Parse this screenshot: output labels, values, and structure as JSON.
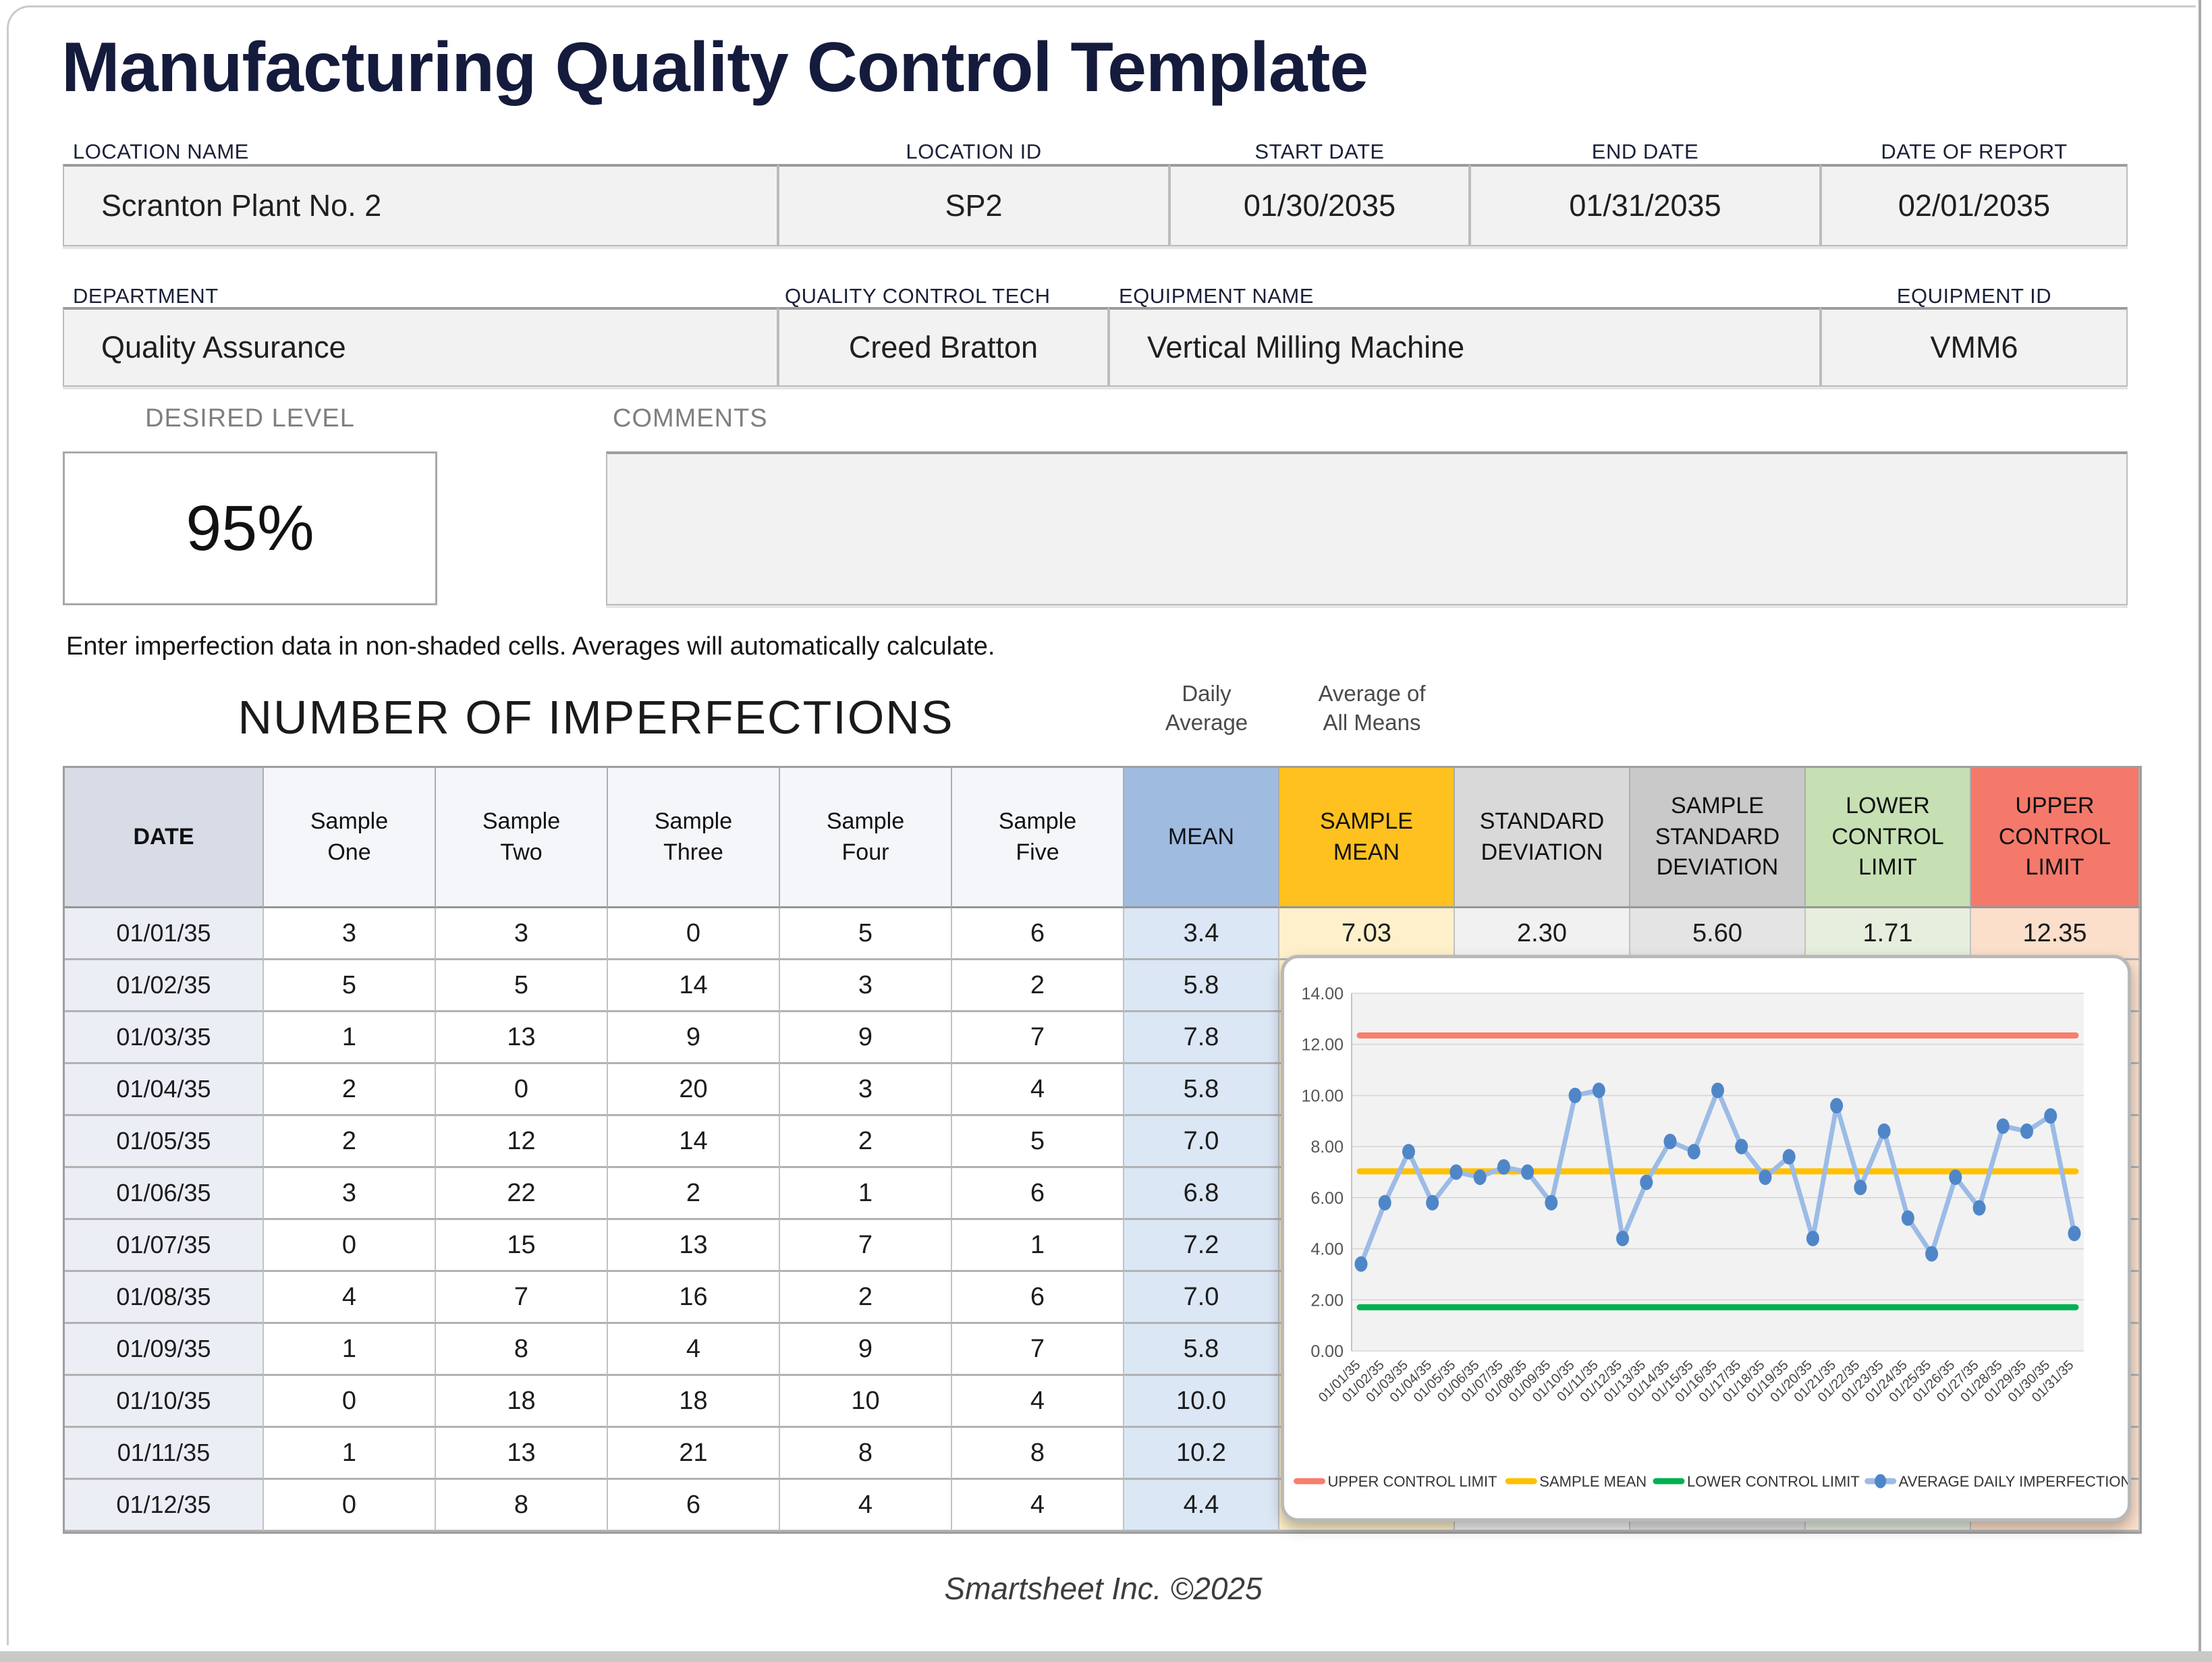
{
  "page": {
    "title": "Manufacturing Quality Control Template",
    "instruction": "Enter imperfection data in non-shaded cells. Averages will automatically calculate.",
    "footer": "Smartsheet Inc. ©2025"
  },
  "fields": {
    "row1": [
      {
        "label": "LOCATION NAME",
        "value": "Scranton Plant No. 2"
      },
      {
        "label": "LOCATION ID",
        "value": "SP2"
      },
      {
        "label": "START DATE",
        "value": "01/30/2035"
      },
      {
        "label": "END DATE",
        "value": "01/31/2035"
      },
      {
        "label": "DATE OF REPORT",
        "value": "02/01/2035"
      }
    ],
    "row2": [
      {
        "label": "DEPARTMENT",
        "value": "Quality Assurance"
      },
      {
        "label": "QUALITY CONTROL TECH",
        "value": "Creed Bratton"
      },
      {
        "label": "EQUIPMENT NAME",
        "value": "Vertical Milling Machine"
      },
      {
        "label": "EQUIPMENT ID",
        "value": "VMM6"
      }
    ]
  },
  "desired_level": {
    "label": "DESIRED LEVEL",
    "value": "95%"
  },
  "comments": {
    "label": "COMMENTS",
    "value": ""
  },
  "table": {
    "title": "NUMBER OF IMPERFECTIONS",
    "note_mean": "Daily\nAverage",
    "note_avg": "Average of\nAll Means",
    "columns": [
      "DATE",
      "Sample\nOne",
      "Sample\nTwo",
      "Sample\nThree",
      "Sample\nFour",
      "Sample\nFive",
      "MEAN",
      "SAMPLE\nMEAN",
      "STANDARD\nDEVIATION",
      "SAMPLE\nSTANDARD\nDEVIATION",
      "LOWER\nCONTROL\nLIMIT",
      "UPPER\nCONTROL\nLIMIT"
    ],
    "rows": [
      {
        "date": "01/01/35",
        "samples": [
          3,
          3,
          0,
          5,
          6
        ],
        "mean": "3.4"
      },
      {
        "date": "01/02/35",
        "samples": [
          5,
          5,
          14,
          3,
          2
        ],
        "mean": "5.8"
      },
      {
        "date": "01/03/35",
        "samples": [
          1,
          13,
          9,
          9,
          7
        ],
        "mean": "7.8"
      },
      {
        "date": "01/04/35",
        "samples": [
          2,
          0,
          20,
          3,
          4
        ],
        "mean": "5.8"
      },
      {
        "date": "01/05/35",
        "samples": [
          2,
          12,
          14,
          2,
          5
        ],
        "mean": "7.0"
      },
      {
        "date": "01/06/35",
        "samples": [
          3,
          22,
          2,
          1,
          6
        ],
        "mean": "6.8"
      },
      {
        "date": "01/07/35",
        "samples": [
          0,
          15,
          13,
          7,
          1
        ],
        "mean": "7.2"
      },
      {
        "date": "01/08/35",
        "samples": [
          4,
          7,
          16,
          2,
          6
        ],
        "mean": "7.0"
      },
      {
        "date": "01/09/35",
        "samples": [
          1,
          8,
          4,
          9,
          7
        ],
        "mean": "5.8"
      },
      {
        "date": "01/10/35",
        "samples": [
          0,
          18,
          18,
          10,
          4
        ],
        "mean": "10.0"
      },
      {
        "date": "01/11/35",
        "samples": [
          1,
          13,
          21,
          8,
          8
        ],
        "mean": "10.2"
      },
      {
        "date": "01/12/35",
        "samples": [
          0,
          8,
          6,
          4,
          4
        ],
        "mean": "4.4"
      }
    ],
    "stats": {
      "sample_mean": "7.03",
      "standard_deviation": "2.30",
      "sample_standard_deviation": "5.60",
      "lower_control_limit": "1.71",
      "upper_control_limit": "12.35"
    }
  },
  "chart_data": {
    "type": "line",
    "x": [
      "01/01/35",
      "01/02/35",
      "01/03/35",
      "01/04/35",
      "01/05/35",
      "01/06/35",
      "01/07/35",
      "01/08/35",
      "01/09/35",
      "01/10/35",
      "01/11/35",
      "01/12/35",
      "01/13/35",
      "01/14/35",
      "01/15/35",
      "01/16/35",
      "01/17/35",
      "01/18/35",
      "01/19/35",
      "01/20/35",
      "01/21/35",
      "01/22/35",
      "01/23/35",
      "01/24/35",
      "01/25/35",
      "01/26/35",
      "01/27/35",
      "01/28/35",
      "01/29/35",
      "01/30/35",
      "01/31/35"
    ],
    "ylim": [
      0,
      14
    ],
    "ytick_step": 2,
    "grid": true,
    "legend_position": "bottom",
    "series": [
      {
        "name": "UPPER CONTROL LIMIT",
        "type": "hline",
        "value": 12.35,
        "color": "#F87E6D"
      },
      {
        "name": "SAMPLE MEAN",
        "type": "hline",
        "value": 7.03,
        "color": "#FFC000"
      },
      {
        "name": "LOWER CONTROL LIMIT",
        "type": "hline",
        "value": 1.71,
        "color": "#00B050"
      },
      {
        "name": "AVERAGE DAILY IMPERFECTIONS",
        "type": "line",
        "color": "#9CBBE6",
        "marker_color": "#4F86C8",
        "values": [
          3.4,
          5.8,
          7.8,
          5.8,
          7.0,
          6.8,
          7.2,
          7.0,
          5.8,
          10.0,
          10.2,
          4.4,
          6.6,
          8.2,
          7.8,
          10.2,
          8.0,
          6.8,
          7.6,
          4.4,
          9.6,
          6.4,
          8.6,
          5.2,
          3.8,
          6.8,
          5.6,
          8.8,
          8.6,
          9.2,
          4.6
        ]
      }
    ]
  }
}
